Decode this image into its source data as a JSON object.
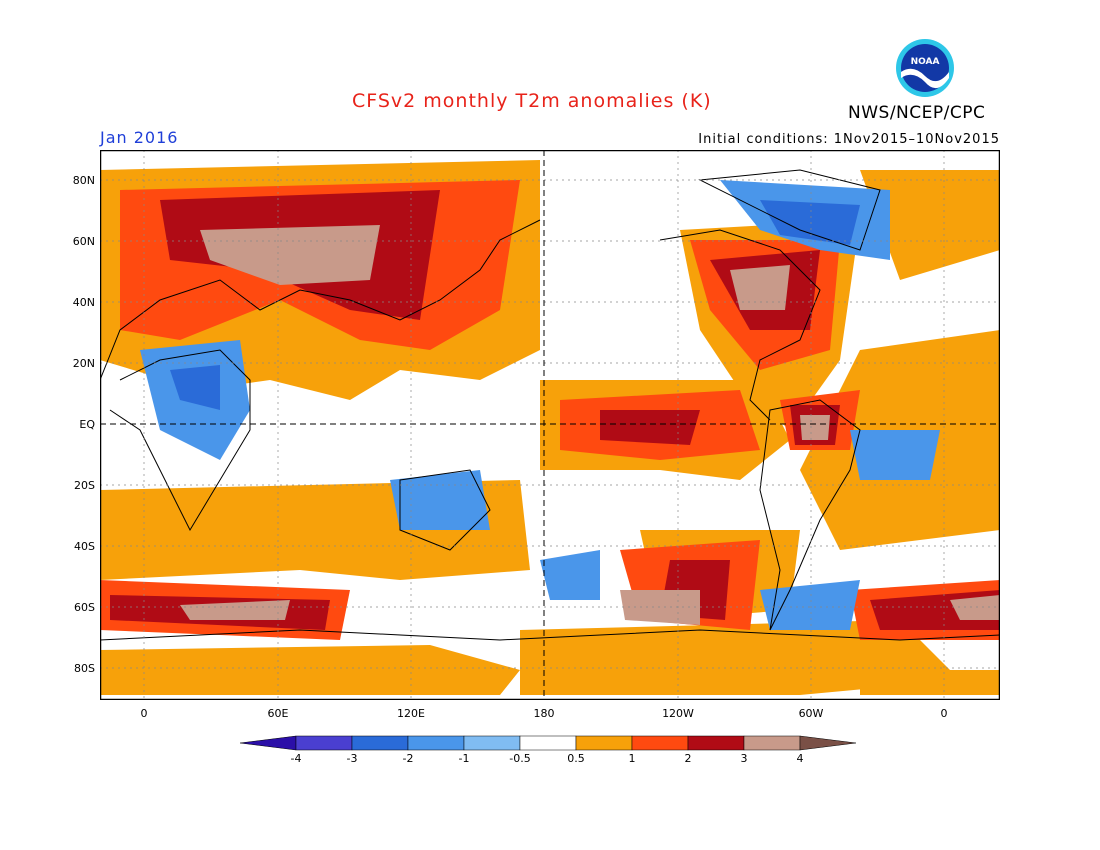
{
  "title": "CFSv2 monthly T2m anomalies (K)",
  "agency": "NWS/NCEP/CPC",
  "logo_text": "NOAA",
  "month_label": "Jan 2016",
  "initial_conditions": "Initial conditions: 1Nov2015–10Nov2015",
  "colors": {
    "title": "#e8231a",
    "month": "#1f3fd8"
  },
  "latitude_labels": [
    "80N",
    "60N",
    "40N",
    "20N",
    "EQ",
    "20S",
    "40S",
    "60S",
    "80S"
  ],
  "longitude_labels": [
    "0",
    "60E",
    "120E",
    "180",
    "120W",
    "60W",
    "0"
  ],
  "colorbar": {
    "labels": [
      "-4",
      "-3",
      "-2",
      "-1",
      "-0.5",
      "0.5",
      "1",
      "2",
      "3",
      "4"
    ],
    "colors": [
      "#2b0fa8",
      "#4a3fd0",
      "#2a6bd8",
      "#4a96ea",
      "#80bcf2",
      "#ffffff",
      "#f7a10a",
      "#ff4a10",
      "#b00b15",
      "#c89a8a",
      "#7a5046"
    ]
  }
}
